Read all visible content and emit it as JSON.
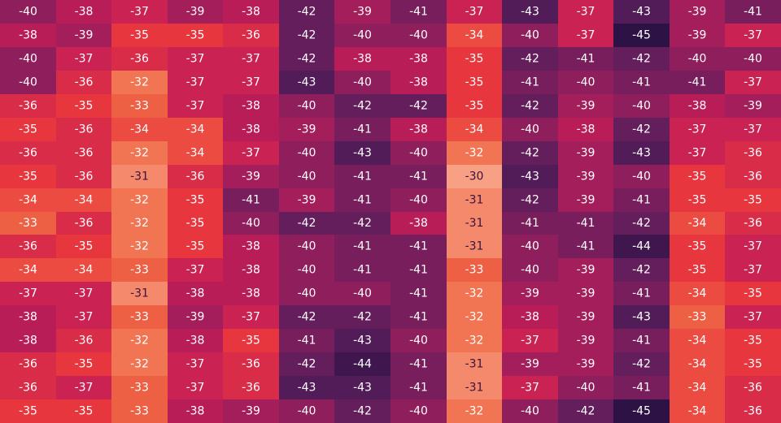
{
  "chart_data": {
    "type": "heatmap",
    "title": "",
    "xlabel": "",
    "ylabel": "",
    "colormap": [
      "#2d1245",
      "#5a1e5c",
      "#8e1e5c",
      "#c21d57",
      "#e8363f",
      "#f06a45",
      "#f7a084"
    ],
    "vmin": -45,
    "vmax": -30,
    "values": [
      [
        -40,
        -38,
        -37,
        -39,
        -38,
        -42,
        -39,
        -41,
        -37,
        -43,
        -37,
        -43,
        -39,
        -41
      ],
      [
        -38,
        -39,
        -35,
        -35,
        -36,
        -42,
        -40,
        -40,
        -34,
        -40,
        -37,
        -45,
        -39,
        -37
      ],
      [
        -40,
        -37,
        -36,
        -37,
        -37,
        -42,
        -38,
        -38,
        -35,
        -42,
        -41,
        -42,
        -40,
        -40
      ],
      [
        -40,
        -36,
        -32,
        -37,
        -37,
        -43,
        -40,
        -38,
        -35,
        -41,
        -40,
        -41,
        -41,
        -37
      ],
      [
        -36,
        -35,
        -33,
        -37,
        -38,
        -40,
        -42,
        -42,
        -35,
        -42,
        -39,
        -40,
        -38,
        -39
      ],
      [
        -35,
        -36,
        -34,
        -34,
        -38,
        -39,
        -41,
        -38,
        -34,
        -40,
        -38,
        -42,
        -37,
        -37
      ],
      [
        -36,
        -36,
        -32,
        -34,
        -37,
        -40,
        -43,
        -40,
        -32,
        -42,
        -39,
        -43,
        -37,
        -36
      ],
      [
        -35,
        -36,
        -31,
        -36,
        -39,
        -40,
        -41,
        -41,
        -30,
        -43,
        -39,
        -40,
        -35,
        -36
      ],
      [
        -34,
        -34,
        -32,
        -35,
        -41,
        -39,
        -41,
        -40,
        -31,
        -42,
        -39,
        -41,
        -35,
        -35
      ],
      [
        -33,
        -36,
        -32,
        -35,
        -40,
        -42,
        -42,
        -38,
        -31,
        -41,
        -41,
        -42,
        -34,
        -36
      ],
      [
        -36,
        -35,
        -32,
        -35,
        -38,
        -40,
        -41,
        -41,
        -31,
        -40,
        -41,
        -44,
        -35,
        -37
      ],
      [
        -34,
        -34,
        -33,
        -37,
        -38,
        -40,
        -41,
        -41,
        -33,
        -40,
        -39,
        -42,
        -35,
        -37
      ],
      [
        -37,
        -37,
        -31,
        -38,
        -38,
        -40,
        -40,
        -41,
        -32,
        -39,
        -39,
        -41,
        -34,
        -35
      ],
      [
        -38,
        -37,
        -33,
        -39,
        -37,
        -42,
        -42,
        -41,
        -32,
        -38,
        -39,
        -43,
        -33,
        -37
      ],
      [
        -38,
        -36,
        -32,
        -38,
        -35,
        -41,
        -43,
        -40,
        -32,
        -37,
        -39,
        -41,
        -34,
        -35
      ],
      [
        -36,
        -35,
        -32,
        -37,
        -36,
        -42,
        -44,
        -41,
        -31,
        -39,
        -39,
        -42,
        -34,
        -35
      ],
      [
        -36,
        -37,
        -33,
        -37,
        -36,
        -43,
        -43,
        -41,
        -31,
        -37,
        -40,
        -41,
        -34,
        -36
      ],
      [
        -35,
        -35,
        -33,
        -38,
        -39,
        -40,
        -42,
        -40,
        -32,
        -40,
        -42,
        -45,
        -34,
        -36
      ]
    ]
  }
}
